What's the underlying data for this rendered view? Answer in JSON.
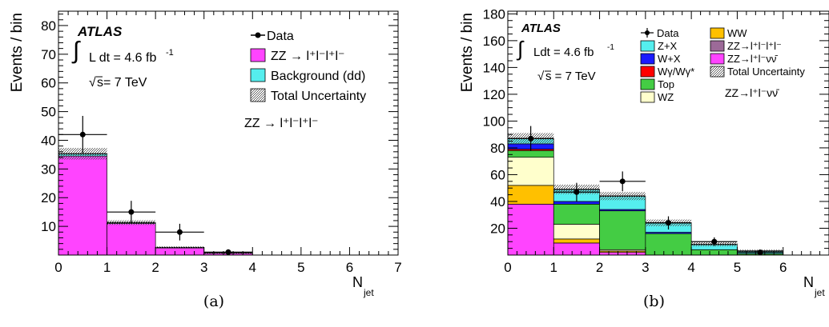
{
  "chart_data": [
    {
      "type": "bar",
      "subtype": "stacked-histogram",
      "panel_caption": "(a)",
      "atlas_label": "ATLAS",
      "lumi_label": "L dt = 4.6 fb",
      "lumi_sup": "-1",
      "sqrt_label": "s= 7 TeV",
      "channel_label": "ZZ → l⁺l⁻l⁺l⁻",
      "xlabel": "N",
      "xlabel_sub": "jet",
      "ylabel": "Events / bin",
      "xlim": [
        0,
        7
      ],
      "ylim": [
        0,
        85
      ],
      "x_ticks": [
        "0",
        "1",
        "2",
        "3",
        "4",
        "5",
        "6",
        "7"
      ],
      "y_ticks": [
        "10",
        "20",
        "30",
        "40",
        "50",
        "60",
        "70",
        "80"
      ],
      "bin_edges": [
        0,
        1,
        2,
        3,
        4
      ],
      "series": [
        {
          "name": "ZZ → l⁺l⁻l⁺l⁻",
          "color": "#ff44ff",
          "values": [
            34.5,
            11.0,
            2.5,
            0.7
          ]
        },
        {
          "name": "Background (dd)",
          "color": "#55eeee",
          "values": [
            0.8,
            0.3,
            0.1,
            0.0
          ]
        }
      ],
      "uncertainty": {
        "name": "Total Uncertainty",
        "half_width": [
          2.0,
          0.8,
          0.4,
          0.2
        ]
      },
      "data": {
        "name": "Data",
        "x": [
          0.5,
          1.5,
          2.5,
          3.5
        ],
        "y": [
          42,
          15,
          8,
          1
        ],
        "yerr": [
          6.5,
          3.9,
          2.9,
          1.0
        ]
      },
      "legend_position": "top-right"
    },
    {
      "type": "bar",
      "subtype": "stacked-histogram",
      "panel_caption": "(b)",
      "atlas_label": "ATLAS",
      "lumi_label": "Ldt = 4.6 fb",
      "lumi_sup": "-1",
      "sqrt_label": "s = 7 TeV",
      "channel_label": "ZZ→l⁺l⁻νν̄",
      "xlabel": "N",
      "xlabel_sub": "jet",
      "ylabel": "Events / bin",
      "xlim": [
        0,
        7
      ],
      "ylim": [
        0,
        182
      ],
      "x_ticks": [
        "0",
        "1",
        "2",
        "3",
        "4",
        "5",
        "6"
      ],
      "y_ticks": [
        "20",
        "40",
        "60",
        "80",
        "100",
        "120",
        "140",
        "160",
        "180"
      ],
      "bin_edges": [
        0,
        1,
        2,
        3,
        4,
        5,
        6
      ],
      "series": [
        {
          "name": "ZZ→l⁺l⁻νν̄",
          "color": "#ff44ff",
          "values": [
            38,
            9,
            2,
            0,
            0,
            0
          ]
        },
        {
          "name": "ZZ→l⁺l⁻l⁺l⁻",
          "color": "#9c6a98",
          "values": [
            0,
            0,
            0,
            0,
            0,
            0
          ]
        },
        {
          "name": "WW",
          "color": "#ffc000",
          "values": [
            14,
            3,
            1,
            0,
            0,
            0
          ]
        },
        {
          "name": "WZ",
          "color": "#ffffcc",
          "values": [
            21,
            11,
            1,
            0,
            0,
            0
          ]
        },
        {
          "name": "Top",
          "color": "#44cc44",
          "values": [
            5,
            15,
            29,
            16,
            4,
            1
          ]
        },
        {
          "name": "Wγ/Wγ*",
          "color": "#ff0000",
          "values": [
            1,
            0,
            0,
            0,
            0,
            0
          ]
        },
        {
          "name": "W+X",
          "color": "#1a1aff",
          "values": [
            4,
            2,
            1,
            1,
            0,
            0
          ]
        },
        {
          "name": "Z+X",
          "color": "#55eeee",
          "values": [
            4,
            9,
            10,
            7,
            4,
            2
          ]
        }
      ],
      "uncertainty": {
        "name": "Total Uncertainty",
        "half_width": [
          4,
          3.5,
          3,
          2.5,
          1.5,
          1
        ]
      },
      "data": {
        "name": "Data",
        "x": [
          0.5,
          1.5,
          2.5,
          3.5,
          4.5,
          5.5
        ],
        "y": [
          87,
          47,
          55,
          24,
          10,
          2
        ],
        "yerr": [
          9.3,
          6.9,
          7.4,
          4.9,
          3.2,
          1.4
        ]
      },
      "legend_position": "top-right"
    }
  ]
}
